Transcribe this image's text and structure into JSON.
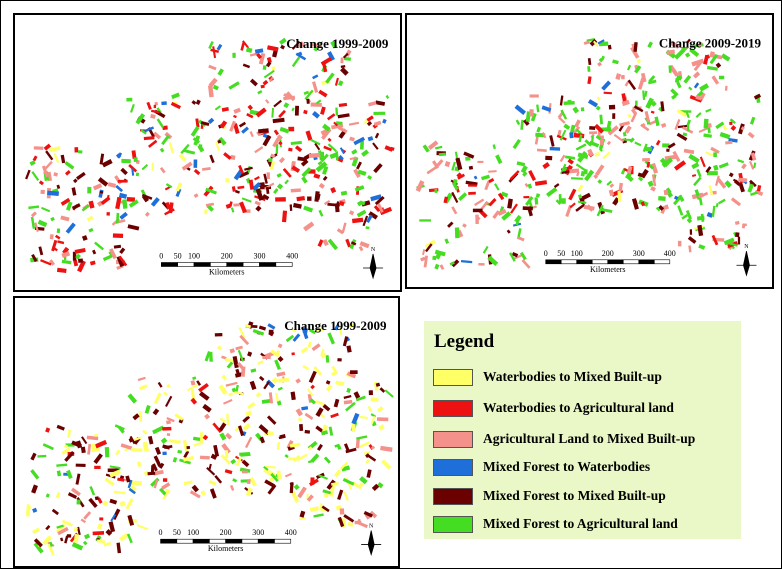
{
  "panels": [
    {
      "title": "Change 1999-2009"
    },
    {
      "title": "Change 2009-2019"
    },
    {
      "title": "Change 1999-2009"
    }
  ],
  "scale_bar": {
    "labels": [
      "0",
      "50",
      "100",
      "200",
      "300",
      "400"
    ],
    "unit": "Kilometers"
  },
  "north": "N",
  "legend": {
    "title": "Legend",
    "items": [
      {
        "label": "Waterbodies to Mixed Built-up",
        "color": "#ffff66"
      },
      {
        "label": "Waterbodies to Agricultural land",
        "color": "#ee1111"
      },
      {
        "label": "Agricultural Land to Mixed Built-up",
        "color": "#f4918a"
      },
      {
        "label": "Mixed Forest to Waterbodies",
        "color": "#1e6fd9"
      },
      {
        "label": "Mixed Forest to Mixed Built-up",
        "color": "#6b0000"
      },
      {
        "label": "Mixed Forest to Agricultural land",
        "color": "#44dd22"
      }
    ]
  }
}
